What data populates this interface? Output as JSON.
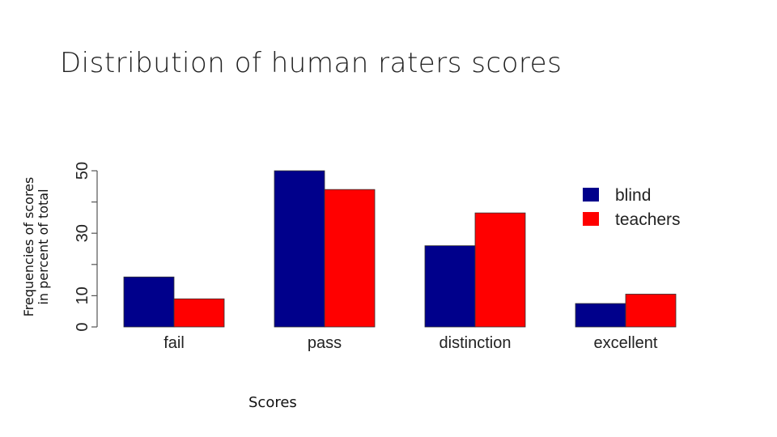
{
  "title": "Distribution of human raters scores",
  "chart_data": {
    "type": "bar",
    "categories": [
      "fail",
      "pass",
      "distinction",
      "excellent"
    ],
    "series": [
      {
        "name": "blind",
        "color": "#00008B",
        "values": [
          16,
          50,
          26,
          7.5
        ]
      },
      {
        "name": "teachers",
        "color": "#FF0000",
        "values": [
          9,
          44,
          36.5,
          10.5
        ]
      }
    ],
    "xlabel": "Scores",
    "ylabel_lines": [
      "Frequencies of scores",
      "in percent of total"
    ],
    "ylim": [
      0,
      50
    ],
    "yticks": [
      0,
      10,
      20,
      30,
      40,
      50
    ],
    "ytick_labels": [
      "0",
      "10",
      "",
      "30",
      "",
      "50"
    ],
    "legend_position": "top-right",
    "grid": false
  }
}
